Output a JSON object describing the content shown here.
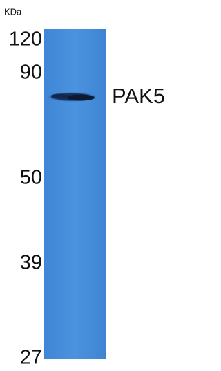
{
  "blot": {
    "unit_label": "KDa",
    "markers": [
      "120",
      "90",
      "50",
      "39",
      "27"
    ],
    "band_label": "PAK5"
  }
}
